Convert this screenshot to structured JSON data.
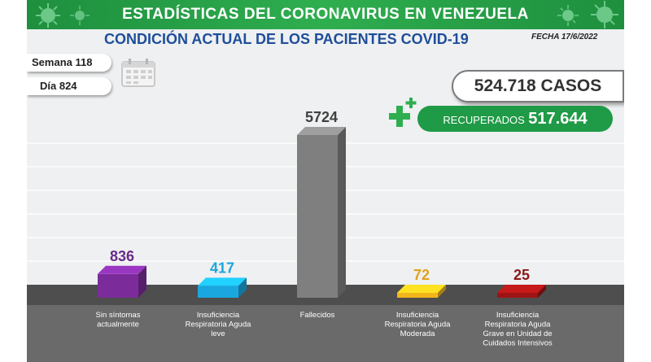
{
  "header": {
    "title": "ESTADÍSTICAS DEL CORONAVIRUS EN VENEZUELA",
    "subtitle": "CONDICIÓN ACTUAL DE LOS PACIENTES COVID-19",
    "fecha": "FECHA 17/6/2022"
  },
  "info": {
    "semana": "Semana 118",
    "dia": "Día 824",
    "calendar_icon": "calendar-icon"
  },
  "summary": {
    "casos": "524.718 CASOS",
    "recuperados_label": "RECUPERADOS",
    "recuperados_value": "517.644",
    "plus_icon": "plus-icon"
  },
  "colors": {
    "banner": "#2fae4f",
    "title_blue": "#1f4e9a",
    "recuperados_green": "#1f9a46",
    "floor": "#4e4e4e"
  },
  "chart_data": {
    "type": "bar",
    "categories": [
      "Sin síntomas actualmente",
      "Insuficiencia Respiratoria Aguda leve",
      "Fallecidos",
      "Insuficiencia Respiratoria Aguda Moderada",
      "Insuficiencia Respiratoria Aguda Grave en Unidad de Cuidados Intensivos"
    ],
    "category_lines": [
      [
        "Sin síntomas",
        "actualmente"
      ],
      [
        "Insuficiencia",
        "Respiratoria Aguda",
        "leve"
      ],
      [
        "Fallecidos"
      ],
      [
        "Insuficiencia",
        "Respiratoria Aguda",
        "Moderada"
      ],
      [
        "Insuficiencia",
        "Respiratoria Aguda",
        "Grave en Unidad de",
        "Cuidados Intensivos"
      ]
    ],
    "values": [
      836,
      417,
      5724,
      72,
      25
    ],
    "value_labels": [
      "836",
      "417",
      "5724",
      "72",
      "25"
    ],
    "colors": [
      "#7b2c9a",
      "#1aa7e0",
      "#7f7f7f",
      "#f2b51b",
      "#9e1414"
    ],
    "label_colors": [
      "#6a2a8a",
      "#1aa7e0",
      "#404040",
      "#e3a21a",
      "#8b1a1a"
    ]
  }
}
